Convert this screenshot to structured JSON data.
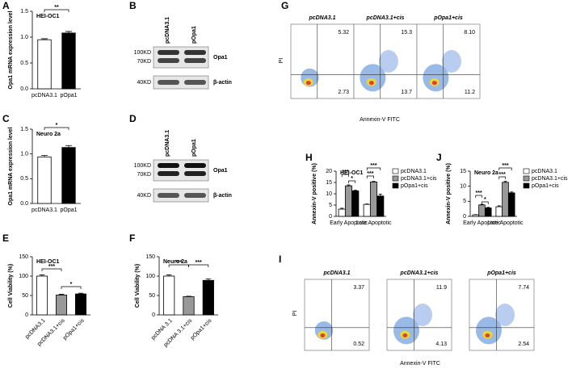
{
  "panels": [
    "A",
    "B",
    "C",
    "D",
    "E",
    "F",
    "G",
    "H",
    "I",
    "J"
  ],
  "chart_data": [
    {
      "type": "bar",
      "note": "HEI-OC1",
      "ylabel": "Opa1 mRNA expression level",
      "categories": [
        "pcDNA3.1",
        "pOpa1"
      ],
      "values": [
        0.95,
        1.08
      ],
      "errors": [
        0.02,
        0.03
      ],
      "colors": [
        "#ffffff",
        "#000000"
      ],
      "ylim": [
        0,
        1.5
      ],
      "yticks": [
        {
          "value": 0,
          "label": "0.0"
        },
        0.5,
        {
          "value": 1,
          "label": "1.0"
        },
        1.5
      ],
      "annotations": [
        "**"
      ]
    },
    {
      "type": "bar",
      "note": "Neuro 2a",
      "ylabel": "Opa1 mRNA expression level",
      "categories": [
        "pcDNA3.1",
        "pOpa1"
      ],
      "values": [
        0.94,
        1.13
      ],
      "errors": [
        0.03,
        0.04
      ],
      "colors": [
        "#ffffff",
        "#000000"
      ],
      "ylim": [
        0,
        1.5
      ],
      "yticks": [
        {
          "value": 0,
          "label": "0.0"
        },
        0.5,
        {
          "value": 1,
          "label": "1.0"
        },
        1.5
      ],
      "annotations": [
        "*"
      ]
    },
    {
      "type": "bar",
      "note": "HEI-OC1",
      "ylabel": "Cell Viability (%)",
      "categories": [
        "pcDNA3.1",
        "pcDNA3.1+cis",
        "pOpa1+cis"
      ],
      "values": [
        100,
        51,
        54
      ],
      "errors": [
        3,
        2,
        2
      ],
      "colors": [
        "#ffffff",
        "#999999",
        "#000000"
      ],
      "ylim": [
        0,
        150
      ],
      "yticks": [
        0,
        50,
        100,
        150
      ],
      "annotations": [
        "***",
        "*"
      ]
    },
    {
      "type": "bar",
      "note": "Neuro 2a",
      "ylabel": "Cell Viability (%)",
      "categories": [
        "pcDNA 3.1",
        "pcDNA 3.1+cis",
        "pOpa1+cis"
      ],
      "values": [
        100,
        47,
        89
      ],
      "errors": [
        3,
        1,
        4
      ],
      "colors": [
        "#ffffff",
        "#999999",
        "#000000"
      ],
      "ylim": [
        0,
        150
      ],
      "yticks": [
        0,
        50,
        100,
        150
      ],
      "annotations": [
        "***",
        "***"
      ]
    },
    {
      "type": "grouped-bar",
      "note": "HEI-OC1",
      "ylabel": "Annexin-V positive (%)",
      "categories": [
        "Early Apoptotic",
        "Late Apoptotic"
      ],
      "series": [
        {
          "name": "pcDNA3.1",
          "color": "#ffffff",
          "values": [
            3.2,
            5.3
          ],
          "errors": [
            0.4,
            0.2
          ]
        },
        {
          "name": "pcDNA3.1+cis",
          "color": "#999999",
          "values": [
            13.5,
            15.2
          ],
          "errors": [
            0.4,
            0.3
          ]
        },
        {
          "name": "pOpa1+cis",
          "color": "#000000",
          "values": [
            11.3,
            9.0
          ],
          "errors": [
            0.3,
            0.8
          ]
        }
      ],
      "ylim": [
        0,
        20
      ],
      "yticks": [
        0,
        5,
        10,
        15,
        20
      ],
      "annotations": [
        "***",
        "*",
        "***",
        "***"
      ]
    },
    {
      "type": "grouped-bar",
      "note": "Neuro 2a",
      "ylabel": "Annexin-V positive (%)",
      "categories": [
        "Early Apoptotic",
        "Late Apoptotic"
      ],
      "series": [
        {
          "name": "pcDNA3.1",
          "color": "#ffffff",
          "values": [
            0.5,
            3.2
          ],
          "errors": [
            0.1,
            0.3
          ]
        },
        {
          "name": "pcDNA3.1+cis",
          "color": "#999999",
          "values": [
            3.8,
            11.3
          ],
          "errors": [
            0.2,
            0.3
          ]
        },
        {
          "name": "pOpa1+cis",
          "color": "#000000",
          "values": [
            2.8,
            7.8
          ],
          "errors": [
            0.2,
            0.3
          ]
        }
      ],
      "ylim": [
        0,
        15
      ],
      "yticks": [
        0,
        5,
        10,
        15
      ],
      "annotations": [
        "***",
        "*",
        "***",
        "***"
      ]
    }
  ],
  "blots": [
    {
      "lanes": [
        "pcDNA3.1",
        "pOpa1"
      ],
      "markers": [
        "100KD",
        "70KD",
        "40KD"
      ],
      "proteins": [
        "Opa1",
        "β-actin"
      ]
    },
    {
      "lanes": [
        "pcDNA3.1",
        "pOpa1"
      ],
      "markers": [
        "100KD",
        "70KD",
        "40KD"
      ],
      "proteins": [
        "Opa1",
        "β-actin"
      ]
    }
  ],
  "flow": [
    {
      "y_label": "PI",
      "x_label": "Annexin-V FITC",
      "samples": [
        {
          "name": "pcDNA3.1",
          "upper_right": "5.32",
          "lower_right": "2.73"
        },
        {
          "name": "pcDNA3.1+cis",
          "upper_right": "15.3",
          "lower_right": "13.7"
        },
        {
          "name": "pOpa1+cis",
          "upper_right": "8.10",
          "lower_right": "11.2"
        }
      ]
    },
    {
      "y_label": "PI",
      "x_label": "Annexin-V FITC",
      "samples": [
        {
          "name": "pcDNA3.1",
          "upper_right": "3.37",
          "lower_right": "0.52"
        },
        {
          "name": "pcDNA3.1+cis",
          "upper_right": "11.9",
          "lower_right": "4.13"
        },
        {
          "name": "pOpa1+cis",
          "upper_right": "7.74",
          "lower_right": "2.54"
        }
      ]
    }
  ]
}
